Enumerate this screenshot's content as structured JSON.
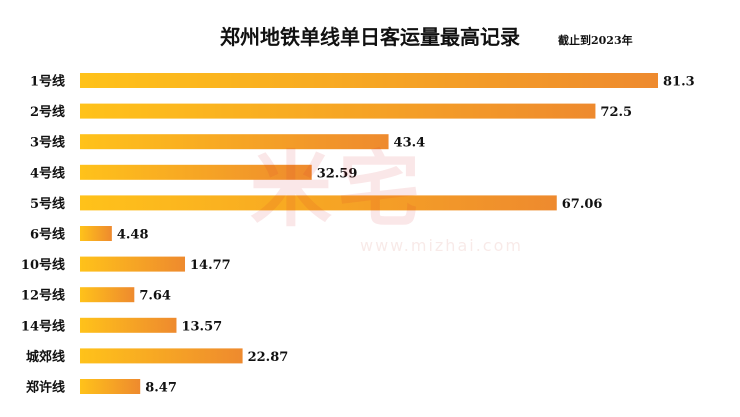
{
  "watermark": {
    "brand": "米宅",
    "url": "www.mizhai.com"
  },
  "colors": {
    "bar_start": "#FFC21A",
    "bar_end": "#EE8A2E",
    "text": "#111111"
  },
  "chart_data": {
    "type": "bar",
    "orientation": "horizontal",
    "title": "郑州地铁单线单日客运量最高记录",
    "subtitle": "截止到2023年",
    "categories": [
      "1号线",
      "2号线",
      "3号线",
      "4号线",
      "5号线",
      "6号线",
      "10号线",
      "12号线",
      "14号线",
      "城郊线",
      "郑许线"
    ],
    "values": [
      81.3,
      72.5,
      43.4,
      32.59,
      67.06,
      4.48,
      14.77,
      7.64,
      13.57,
      22.87,
      8.47
    ],
    "value_labels": [
      "81.3",
      "72.5",
      "43.4",
      "32.59",
      "67.06",
      "4.48",
      "14.77",
      "7.64",
      "13.57",
      "22.87",
      "8.47"
    ],
    "xlim": [
      0,
      81.3
    ],
    "grid": false,
    "legend": "none"
  }
}
